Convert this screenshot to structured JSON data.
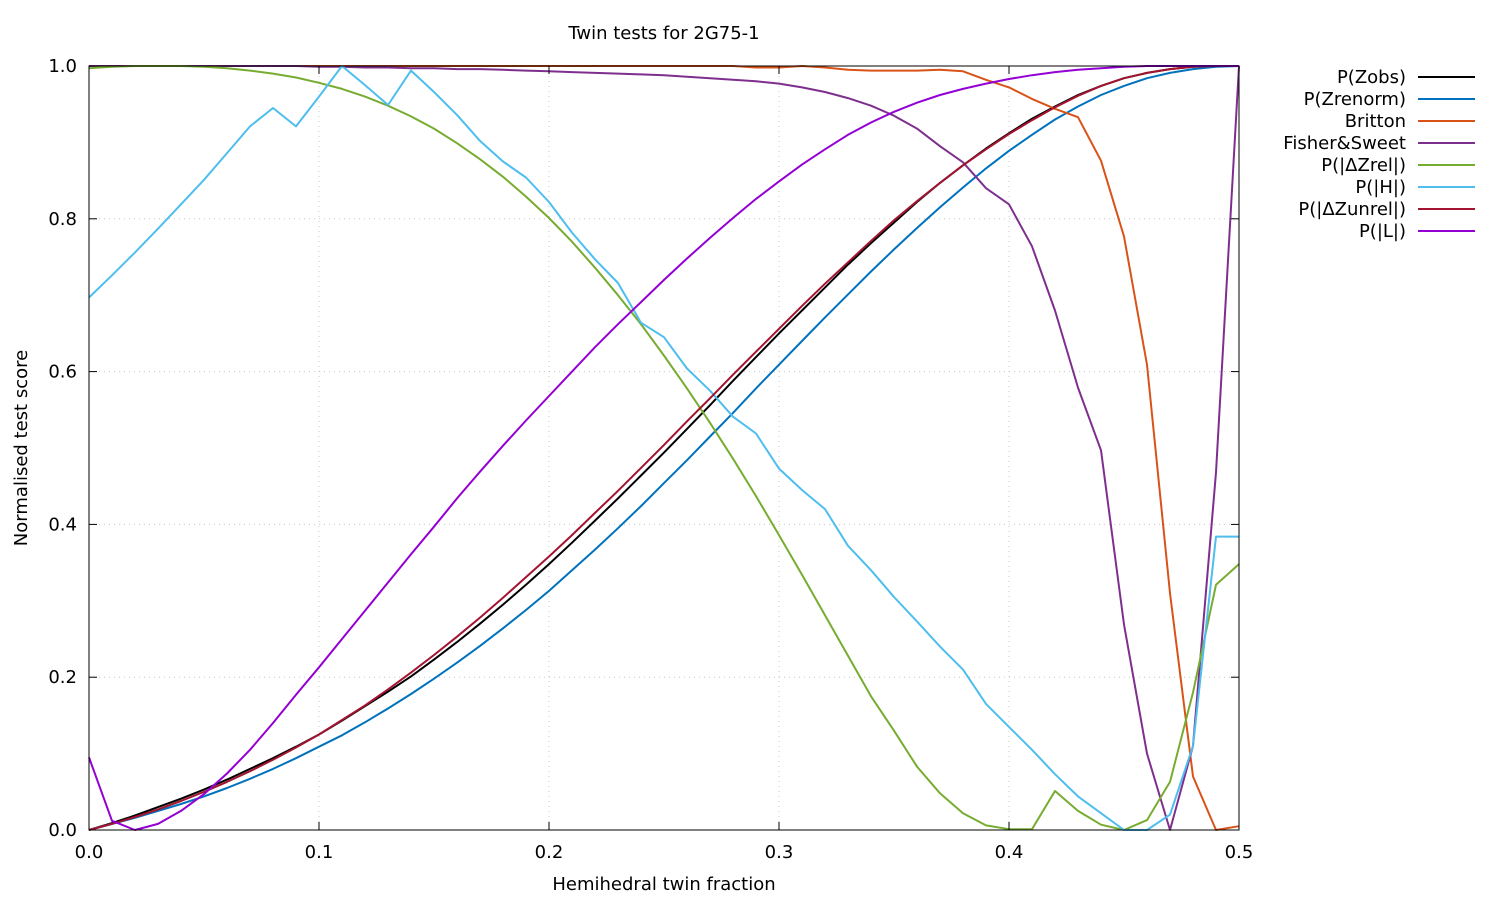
{
  "chart_data": {
    "type": "line",
    "title": "Twin tests for 2G75-1",
    "xlabel": "Hemihedral twin fraction",
    "ylabel": "Normalised test score",
    "xlim": [
      0,
      0.5
    ],
    "ylim": [
      0,
      1
    ],
    "xticks": [
      "0.0",
      "0.1",
      "0.2",
      "0.3",
      "0.4",
      "0.5"
    ],
    "yticks": [
      "0.0",
      "0.2",
      "0.4",
      "0.6",
      "0.8",
      "1.0"
    ],
    "grid": true,
    "legend_position": "outside-right",
    "x": [
      0,
      0.01,
      0.02,
      0.03,
      0.04,
      0.05,
      0.06,
      0.07,
      0.08,
      0.09,
      0.1,
      0.11,
      0.12,
      0.13,
      0.14,
      0.15,
      0.16,
      0.17,
      0.18,
      0.19,
      0.2,
      0.21,
      0.22,
      0.23,
      0.24,
      0.25,
      0.26,
      0.27,
      0.28,
      0.29,
      0.3,
      0.31,
      0.32,
      0.33,
      0.34,
      0.35,
      0.36,
      0.37,
      0.38,
      0.39,
      0.4,
      0.41,
      0.42,
      0.43,
      0.44,
      0.45,
      0.46,
      0.47,
      0.48,
      0.49,
      0.5
    ],
    "series": [
      {
        "name": "P(Zobs)",
        "color": "#000000",
        "values": [
          0,
          0.009,
          0.019,
          0.03,
          0.041,
          0.053,
          0.066,
          0.08,
          0.094,
          0.109,
          0.125,
          0.143,
          0.162,
          0.181,
          0.201,
          0.223,
          0.246,
          0.27,
          0.295,
          0.321,
          0.348,
          0.376,
          0.405,
          0.434,
          0.464,
          0.494,
          0.525,
          0.556,
          0.588,
          0.619,
          0.65,
          0.68,
          0.71,
          0.74,
          0.768,
          0.795,
          0.822,
          0.847,
          0.87,
          0.892,
          0.912,
          0.931,
          0.947,
          0.962,
          0.974,
          0.984,
          0.991,
          0.996,
          0.999,
          1.0,
          1.0
        ]
      },
      {
        "name": "P(Zrenorm)",
        "color": "#0072bd",
        "values": [
          0,
          0.008,
          0.016,
          0.025,
          0.034,
          0.044,
          0.055,
          0.067,
          0.08,
          0.094,
          0.109,
          0.124,
          0.141,
          0.159,
          0.178,
          0.198,
          0.219,
          0.241,
          0.264,
          0.288,
          0.313,
          0.34,
          0.367,
          0.395,
          0.424,
          0.454,
          0.484,
          0.515,
          0.546,
          0.578,
          0.609,
          0.64,
          0.671,
          0.701,
          0.731,
          0.76,
          0.788,
          0.815,
          0.841,
          0.866,
          0.889,
          0.91,
          0.93,
          0.947,
          0.962,
          0.974,
          0.984,
          0.991,
          0.996,
          0.999,
          1.0
        ]
      },
      {
        "name": "Britton",
        "color": "#d95319",
        "values": [
          1,
          1,
          1,
          1,
          1,
          1,
          1,
          1,
          1,
          1,
          1,
          1,
          1,
          1,
          1,
          1,
          1,
          1,
          1,
          1,
          1,
          1,
          1,
          1,
          1,
          1,
          1,
          1,
          1,
          0.998,
          0.998,
          1.0,
          0.998,
          0.995,
          0.994,
          0.994,
          0.994,
          0.995,
          0.993,
          0.982,
          0.972,
          0.957,
          0.944,
          0.933,
          0.876,
          0.777,
          0.609,
          0.31,
          0.07,
          0.0,
          0.005
        ]
      },
      {
        "name": "Fisher&Sweet",
        "color": "#7e2f8e",
        "values": [
          1,
          1,
          1,
          1,
          1,
          1,
          1,
          1,
          1,
          1,
          0.999,
          0.999,
          0.998,
          0.998,
          0.997,
          0.997,
          0.996,
          0.996,
          0.995,
          0.994,
          0.993,
          0.992,
          0.991,
          0.99,
          0.989,
          0.988,
          0.986,
          0.984,
          0.982,
          0.98,
          0.977,
          0.972,
          0.966,
          0.958,
          0.948,
          0.935,
          0.918,
          0.895,
          0.874,
          0.84,
          0.819,
          0.764,
          0.68,
          0.579,
          0.497,
          0.269,
          0.1,
          0.0,
          0.11,
          0.468,
          1.0
        ]
      },
      {
        "name": "P(|ΔZrel|)",
        "color": "#77ac30",
        "values": [
          0.997,
          0.999,
          1.0,
          1.0,
          1.0,
          0.999,
          0.997,
          0.994,
          0.99,
          0.985,
          0.978,
          0.97,
          0.96,
          0.948,
          0.934,
          0.918,
          0.899,
          0.878,
          0.855,
          0.829,
          0.801,
          0.77,
          0.736,
          0.7,
          0.662,
          0.621,
          0.578,
          0.533,
          0.486,
          0.437,
          0.386,
          0.334,
          0.281,
          0.228,
          0.175,
          0.13,
          0.083,
          0.048,
          0.022,
          0.006,
          0.001,
          0.001,
          0.051,
          0.025,
          0.007,
          0.0,
          0.013,
          0.063,
          0.18,
          0.321,
          0.348
        ]
      },
      {
        "name": "P(|H|)",
        "color": "#4dbeee",
        "values": [
          0.697,
          0.726,
          0.756,
          0.787,
          0.819,
          0.851,
          0.886,
          0.921,
          0.945,
          0.921,
          0.96,
          1.0,
          0.975,
          0.949,
          0.994,
          0.966,
          0.936,
          0.902,
          0.875,
          0.854,
          0.822,
          0.782,
          0.747,
          0.716,
          0.664,
          0.645,
          0.604,
          0.575,
          0.541,
          0.519,
          0.473,
          0.445,
          0.42,
          0.372,
          0.34,
          0.305,
          0.273,
          0.24,
          0.21,
          0.165,
          0.135,
          0.105,
          0.073,
          0.044,
          0.022,
          0.0,
          0.0,
          0.02,
          0.11,
          0.384,
          0.384
        ]
      },
      {
        "name": "P(|ΔZunrel|)",
        "color": "#a2142f",
        "values": [
          0,
          0.008,
          0.017,
          0.027,
          0.038,
          0.05,
          0.063,
          0.077,
          0.092,
          0.108,
          0.125,
          0.144,
          0.163,
          0.184,
          0.206,
          0.229,
          0.253,
          0.278,
          0.304,
          0.331,
          0.358,
          0.386,
          0.415,
          0.444,
          0.474,
          0.504,
          0.535,
          0.565,
          0.596,
          0.626,
          0.656,
          0.686,
          0.715,
          0.743,
          0.771,
          0.798,
          0.823,
          0.847,
          0.87,
          0.891,
          0.911,
          0.929,
          0.946,
          0.961,
          0.974,
          0.984,
          0.991,
          0.996,
          0.999,
          1.0,
          1.0
        ]
      },
      {
        "name": "P(|L|)",
        "color": "#9400d3",
        "values": [
          0.095,
          0.012,
          0.0,
          0.008,
          0.025,
          0.047,
          0.074,
          0.105,
          0.14,
          0.177,
          0.213,
          0.25,
          0.287,
          0.324,
          0.361,
          0.397,
          0.434,
          0.469,
          0.503,
          0.536,
          0.568,
          0.6,
          0.632,
          0.662,
          0.691,
          0.72,
          0.748,
          0.775,
          0.801,
          0.826,
          0.849,
          0.871,
          0.891,
          0.91,
          0.926,
          0.94,
          0.952,
          0.962,
          0.97,
          0.977,
          0.983,
          0.988,
          0.992,
          0.995,
          0.997,
          0.999,
          1.0,
          1.0,
          1.0,
          1.0,
          1.0
        ]
      }
    ]
  }
}
